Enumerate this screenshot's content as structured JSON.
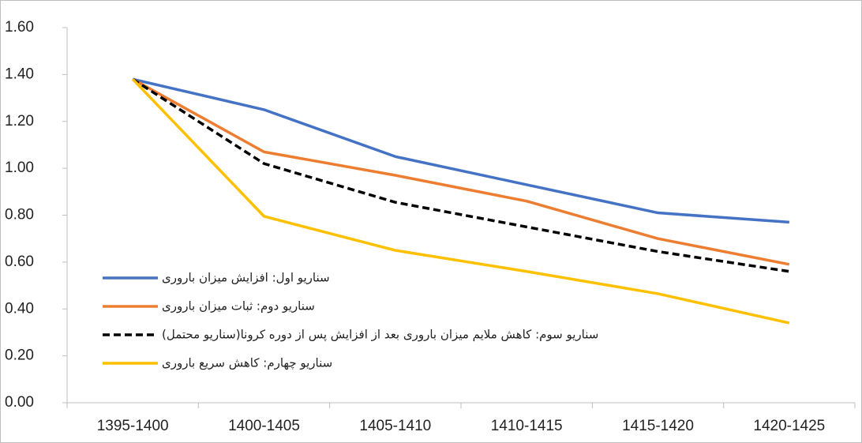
{
  "chart_data": {
    "type": "line",
    "categories": [
      "1395-1400",
      "1400-1405",
      "1405-1410",
      "1410-1415",
      "1415-1420",
      "1420-1425"
    ],
    "series": [
      {
        "name": "سناریو اول: افزایش میزان باروری",
        "color": "#4472c4",
        "values": [
          1.38,
          1.25,
          1.05,
          0.93,
          0.81,
          0.77
        ]
      },
      {
        "name": "سناریو دوم: ثبات میزان باروری",
        "color": "#ed7d31",
        "values": [
          1.38,
          1.07,
          0.97,
          0.86,
          0.7,
          0.59
        ]
      },
      {
        "name": "سناریو سوم: کاهش ملایم میزان باروری بعد از افزایش پس از دوره کرونا(سناریو محتمل)",
        "color": "#000000",
        "dashed": true,
        "values": [
          1.38,
          1.02,
          0.855,
          0.75,
          0.645,
          0.56
        ]
      },
      {
        "name": "سناریو چهارم: کاهش سریع باروری",
        "color": "#ffc000",
        "values": [
          1.38,
          0.795,
          0.65,
          0.56,
          0.465,
          0.34
        ]
      }
    ],
    "ylim": [
      0,
      1.6
    ],
    "yticks": [
      {
        "value": 0,
        "label": "0.00"
      },
      {
        "value": 0.2,
        "label": "0.20"
      },
      {
        "value": 0.4,
        "label": "0.40"
      },
      {
        "value": 0.6,
        "label": "0.60"
      },
      {
        "value": 0.8,
        "label": "0.80"
      },
      {
        "value": 1.0,
        "label": "1.00"
      },
      {
        "value": 1.2,
        "label": "1.20"
      },
      {
        "value": 1.4,
        "label": "1.40"
      },
      {
        "value": 1.6,
        "label": "1.60"
      }
    ],
    "legend": "left"
  }
}
